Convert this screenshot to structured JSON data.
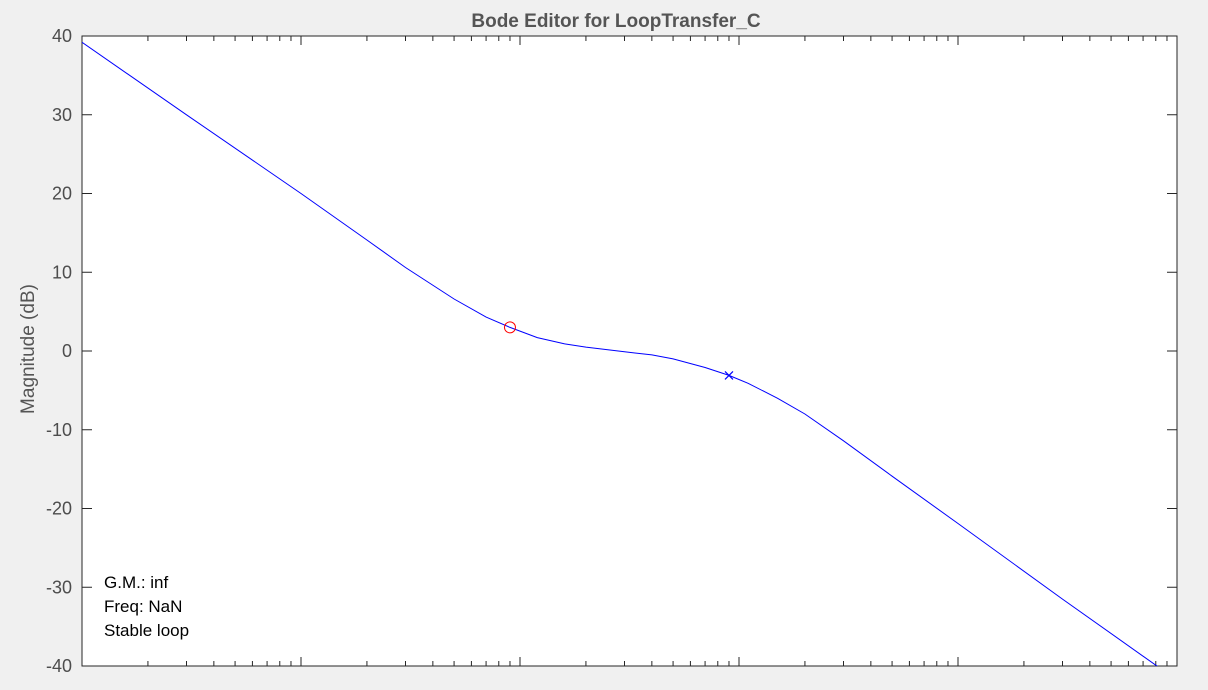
{
  "chart_data": {
    "type": "line",
    "title": "Bode Editor for LoopTransfer_C",
    "xlabel": "",
    "ylabel": "Magnitude (dB)",
    "xscale": "log",
    "xlim": [
      0.01,
      1000
    ],
    "ylim": [
      -40,
      40
    ],
    "yticks": [
      40,
      30,
      20,
      10,
      0,
      -10,
      -20,
      -30,
      -40
    ],
    "grid": false,
    "series": [
      {
        "color": "#0000ff",
        "x": [
          0.01,
          0.03,
          0.1,
          0.2,
          0.3,
          0.5,
          0.7,
          0.9,
          1.2,
          1.6,
          2,
          3,
          4,
          5,
          7,
          9,
          11,
          15,
          20,
          30,
          50,
          100,
          300,
          1000
        ],
        "y": [
          39.2,
          30.0,
          20.0,
          14.1,
          10.6,
          6.6,
          4.3,
          3.0,
          1.7,
          0.9,
          0.5,
          -0.1,
          -0.5,
          -1.0,
          -2.1,
          -3.1,
          -4.1,
          -6.0,
          -8.0,
          -11.4,
          -15.9,
          -21.9,
          -31.5,
          -41.8
        ]
      }
    ],
    "markers": [
      {
        "type": "zero",
        "symbol": "circle",
        "color": "#ff0000",
        "x": 0.9,
        "y": 3.0
      },
      {
        "type": "pole",
        "symbol": "cross",
        "color": "#0000ff",
        "x": 9,
        "y": -3.1
      }
    ],
    "annotations": [
      "G.M.: inf",
      "Freq: NaN",
      "Stable loop"
    ]
  }
}
